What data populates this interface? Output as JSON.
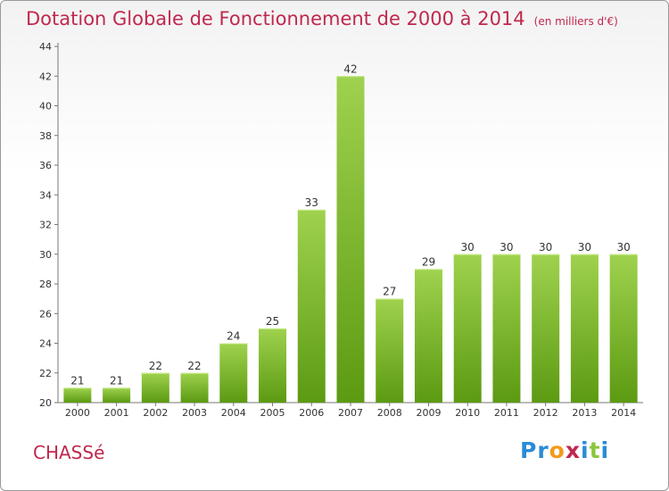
{
  "header": {
    "title": "Dotation Globale de Fonctionnement de 2000 à 2014",
    "subtitle": "(en milliers d'€)"
  },
  "footer": {
    "commune": "CHASSé",
    "logo_letters": [
      "P",
      "r",
      "o",
      "x",
      "i",
      "t",
      "i"
    ]
  },
  "colors": {
    "title": "#c0284d",
    "bar_top": "#9fd24e",
    "bar_bottom": "#5c9a12",
    "logo": [
      "#2a8bd6",
      "#2a8bd6",
      "#f39a1c",
      "#c0284d",
      "#2a8bd6",
      "#8cc63f",
      "#2a8bd6"
    ]
  },
  "chart_data": {
    "type": "bar",
    "title": "Dotation Globale de Fonctionnement de 2000 à 2014",
    "subtitle": "(en milliers d'€)",
    "xlabel": "",
    "ylabel": "",
    "categories": [
      "2000",
      "2001",
      "2002",
      "2003",
      "2004",
      "2005",
      "2006",
      "2007",
      "2008",
      "2009",
      "2010",
      "2011",
      "2012",
      "2013",
      "2014"
    ],
    "values": [
      21,
      21,
      22,
      22,
      24,
      25,
      33,
      42,
      27,
      29,
      30,
      30,
      30,
      30,
      30
    ],
    "ylim": [
      20,
      44
    ],
    "yticks": [
      20,
      22,
      24,
      26,
      28,
      30,
      32,
      34,
      36,
      38,
      40,
      42,
      44
    ],
    "grid": false,
    "data_labels": true
  }
}
